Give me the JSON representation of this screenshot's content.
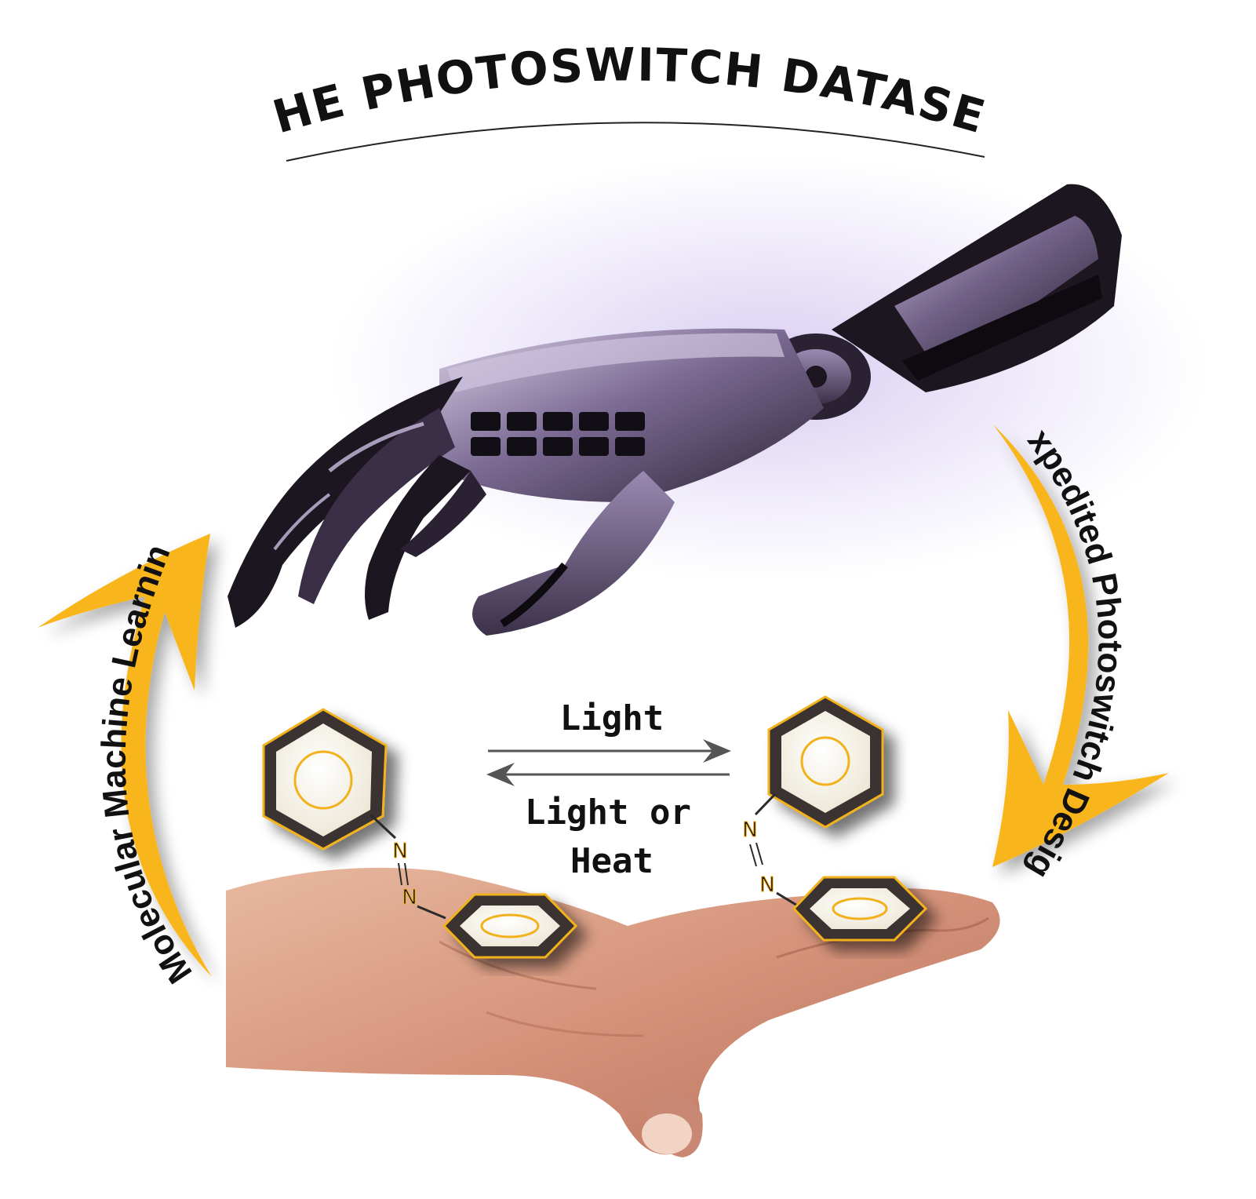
{
  "title": "THE PHOTOSWITCH DATASET",
  "left_cycle_label": "Molecular Machine Learning",
  "right_cycle_label": "Expedited Photoswitch Design",
  "reaction": {
    "forward_label": "Light",
    "reverse_label_line1": "Light or",
    "reverse_label_line2": "Heat"
  },
  "azo_left": {
    "n1": "N",
    "n2": "N"
  },
  "azo_right": {
    "n1": "N",
    "n2": "N"
  },
  "colors": {
    "arrow_gold": "#f9b51c",
    "ring_dark": "#3a3330",
    "ring_gold": "#f2b21f",
    "ring_fill": "#f7f4ea",
    "robot_purple": "#6e5a86",
    "robot_dark": "#1b1620",
    "skin": "#d99a80"
  },
  "icons": {
    "robot_hand": "robot-hand-illustration",
    "human_hand": "human-hand-photo",
    "molecule": "azobenzene-icon"
  }
}
